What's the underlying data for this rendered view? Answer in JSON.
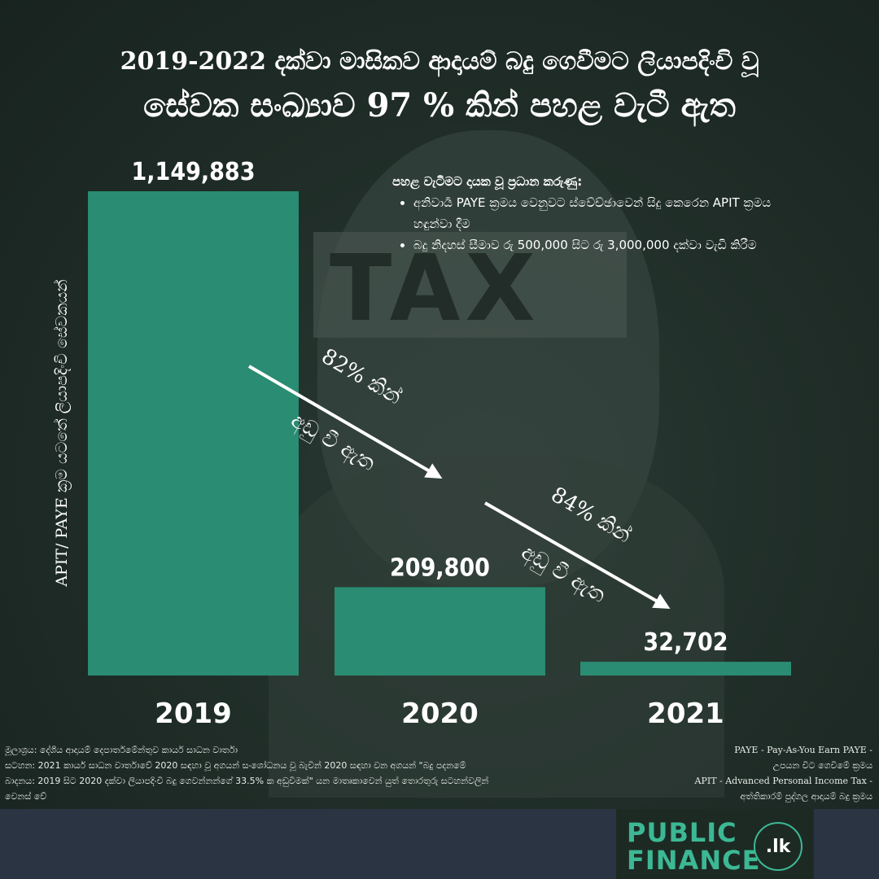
{
  "title": {
    "line1": "2019-2022 දක්වා මාසිකව ආදායම් බදු ගෙවීමට ලියාපදිංචි වූ",
    "line2": "සේවක සංඛ්‍යාව 97 % කින් පහළ වැටී ඇත"
  },
  "reasons": {
    "heading": "පහළ වැටීමට දායක වූ ප්‍රධාන කරුණු:",
    "items": [
      "අනිවාර්‍ය PAYE ක්‍රමය වෙනුවට ස්වේච්ඡාවෙන් සිදු කෙරෙන APIT ක්‍රමය හඳුන්වා දීම",
      "බදු නිදහස් සීමාව රු 500,000 සිට රු 3,000,000 දක්වා වැඩි කිරීම"
    ]
  },
  "chart_data": {
    "type": "bar",
    "categories": [
      "2019",
      "2020",
      "2021"
    ],
    "values": [
      1149883,
      209800,
      32702
    ],
    "value_labels": [
      "1,149,883",
      "209,800",
      "32,702"
    ],
    "ylabel": "APIT/ PAYE ක්‍රම යටතේ ලියාපදිංචි සේවකයන්",
    "ylim": [
      0,
      1149883
    ],
    "grid": false,
    "bar_color": "#2a8c72",
    "annotations": [
      {
        "line1": "82% කින්",
        "line2": "අඩු වී ඇත",
        "from": "2019",
        "to": "2020"
      },
      {
        "line1": "84% කින්",
        "line2": "අඩු වී ඇත",
        "from": "2020",
        "to": "2021"
      }
    ]
  },
  "source": {
    "line1": "මූලාශ්‍රය: දේශීය ආදායම් දෙපාර්තමේන්තුව කාර්ය සාධන වාර්තා",
    "line2": "සටහන: 2021 කාර්ය සාධන වාර්තාවේ 2020 සඳහා වූ අගයන් සංශෝධනය වූ බැවින් 2020 සඳහා වන අගයන් \"බදු පදනමේ",
    "line3": "බාදනය: 2019 සිට 2020 දක්වා ලියාපදිංචි බදු ගෙවන්නන්ගේ 33.5% ක අඩුවීමක්\" යන මාතෘකාවෙන් යුත් තොරතුරු සටහන්වලින්",
    "line4": "වෙනස් වේ"
  },
  "glossary": {
    "line1": "PAYE - Pay-As-You Earn PAYE -",
    "line2": "උපයන විට ගෙවීමේ ක්‍රමය",
    "line3": "APIT - Advanced Personal Income Tax -",
    "line4": "අත්තිකාරම් පුද්ගල ආදායම් බදු ක්‍රමය"
  },
  "logo": {
    "word1": "PUBLIC",
    "word2": "FINANCE",
    "badge": ".lk"
  },
  "background": {
    "tax_text": "TAX"
  }
}
